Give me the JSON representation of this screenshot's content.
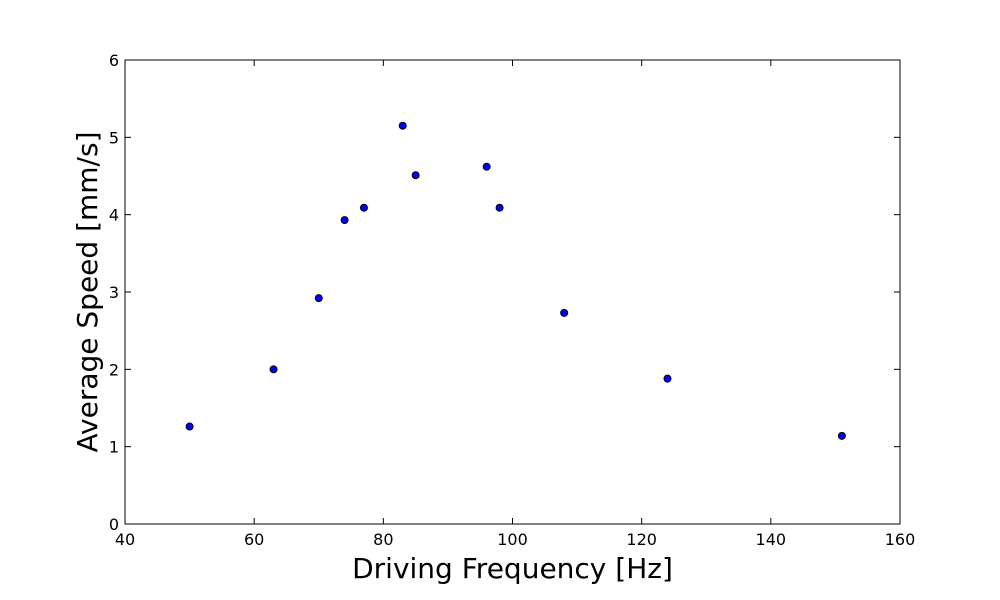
{
  "chart_data": {
    "type": "scatter",
    "title": "",
    "xlabel": "Driving Frequency [Hz]",
    "ylabel": "Average Speed  [mm/s]",
    "xlim": [
      40,
      160
    ],
    "ylim": [
      0,
      6
    ],
    "xticks": [
      40,
      60,
      80,
      100,
      120,
      140,
      160
    ],
    "yticks": [
      0,
      1,
      2,
      3,
      4,
      5,
      6
    ],
    "grid": false,
    "legend": "none",
    "marker_color": "#0000ff",
    "marker_edge_color": "#000000",
    "points": [
      {
        "x": 50,
        "y": 1.26
      },
      {
        "x": 63,
        "y": 2.0
      },
      {
        "x": 70,
        "y": 2.92
      },
      {
        "x": 74,
        "y": 3.93
      },
      {
        "x": 77,
        "y": 4.09
      },
      {
        "x": 83,
        "y": 5.15
      },
      {
        "x": 85,
        "y": 4.51
      },
      {
        "x": 96,
        "y": 4.62
      },
      {
        "x": 98,
        "y": 4.09
      },
      {
        "x": 108,
        "y": 2.73
      },
      {
        "x": 124,
        "y": 1.88
      },
      {
        "x": 151,
        "y": 1.14
      }
    ]
  }
}
